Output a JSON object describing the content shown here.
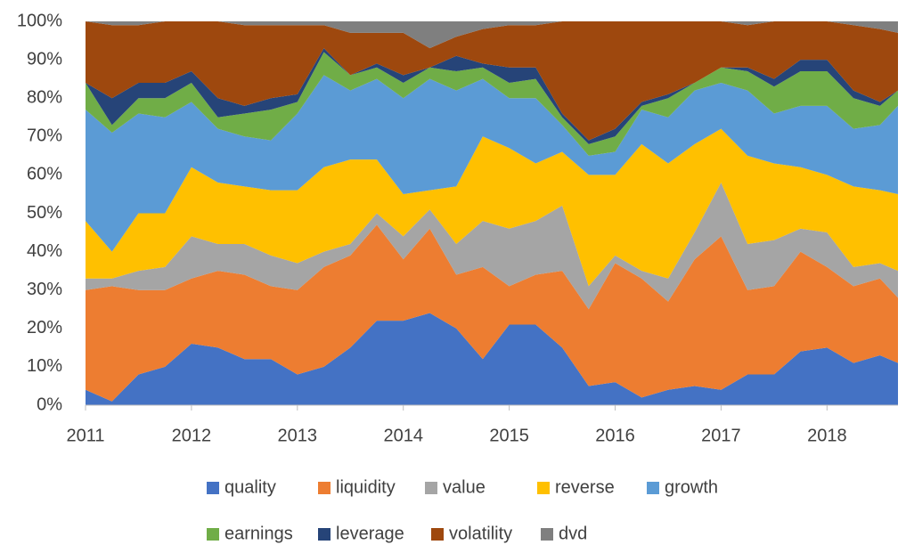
{
  "chart_data": {
    "type": "stacked_area",
    "x": [
      2011,
      2011.25,
      2011.5,
      2011.75,
      2012,
      2012.25,
      2012.5,
      2012.75,
      2013,
      2013.25,
      2013.5,
      2013.75,
      2014,
      2014.25,
      2014.5,
      2014.75,
      2015,
      2015.25,
      2015.5,
      2015.75,
      2016,
      2016.25,
      2016.5,
      2016.75,
      2017,
      2017.25,
      2017.5,
      2017.75,
      2018,
      2018.25,
      2018.5,
      2018.67
    ],
    "xlim": [
      2011,
      2018.67
    ],
    "xticks": [
      2011,
      2012,
      2013,
      2014,
      2015,
      2016,
      2017,
      2018
    ],
    "ylim": [
      0,
      100
    ],
    "yticks": [
      {
        "value": 0,
        "label": "0%"
      },
      {
        "value": 10,
        "label": "10%"
      },
      {
        "value": 20,
        "label": "20%"
      },
      {
        "value": 30,
        "label": "30%"
      },
      {
        "value": 40,
        "label": "40%"
      },
      {
        "value": 50,
        "label": "50%"
      },
      {
        "value": 60,
        "label": "60%"
      },
      {
        "value": 70,
        "label": "70%"
      },
      {
        "value": 80,
        "label": "80%"
      },
      {
        "value": 90,
        "label": "90%"
      },
      {
        "value": 100,
        "label": "100%"
      }
    ],
    "series": [
      {
        "name": "quality",
        "color": "#4472c4",
        "values": [
          4,
          1,
          8,
          10,
          16,
          15,
          12,
          12,
          8,
          10,
          15,
          22,
          22,
          24,
          20,
          12,
          21,
          21,
          15,
          5,
          6,
          2,
          4,
          5,
          4,
          8,
          8,
          14,
          15,
          11,
          13,
          11
        ]
      },
      {
        "name": "liquidity",
        "color": "#ed7d31",
        "values": [
          26,
          30,
          22,
          20,
          17,
          20,
          22,
          19,
          22,
          26,
          24,
          25,
          16,
          22,
          14,
          24,
          10,
          13,
          20,
          20,
          31,
          31,
          23,
          33,
          40,
          22,
          23,
          26,
          21,
          20,
          20,
          17
        ]
      },
      {
        "name": "value",
        "color": "#a5a5a5",
        "values": [
          3,
          2,
          5,
          6,
          11,
          7,
          8,
          8,
          7,
          4,
          3,
          3,
          6,
          5,
          8,
          12,
          15,
          14,
          17,
          6,
          2,
          2,
          6,
          7,
          14,
          12,
          12,
          6,
          9,
          5,
          4,
          7
        ]
      },
      {
        "name": "reverse",
        "color": "#ffc000",
        "values": [
          15,
          7,
          15,
          14,
          18,
          16,
          15,
          17,
          19,
          22,
          22,
          14,
          11,
          5,
          15,
          22,
          21,
          15,
          14,
          29,
          21,
          33,
          30,
          23,
          14,
          23,
          20,
          16,
          15,
          21,
          19,
          20
        ]
      },
      {
        "name": "growth",
        "color": "#5b9bd5",
        "values": [
          29,
          31,
          26,
          25,
          17,
          14,
          13,
          13,
          20,
          24,
          18,
          21,
          25,
          29,
          25,
          15,
          13,
          17,
          7,
          5,
          6,
          9,
          12,
          14,
          12,
          17,
          13,
          16,
          18,
          15,
          17,
          23
        ]
      },
      {
        "name": "earnings",
        "color": "#70ad47",
        "values": [
          7,
          2,
          4,
          5,
          5,
          3,
          6,
          8,
          3,
          6,
          4,
          3,
          4,
          3,
          5,
          3,
          4,
          5,
          2,
          3,
          4,
          1,
          5,
          2,
          4,
          5,
          7,
          9,
          9,
          8,
          5,
          4
        ]
      },
      {
        "name": "leverage",
        "color": "#264478",
        "values": [
          0,
          7,
          4,
          4,
          3,
          5,
          2,
          3,
          2,
          1,
          0,
          1,
          2,
          0,
          4,
          1,
          4,
          3,
          1,
          1,
          2,
          1,
          1,
          0,
          0,
          1,
          2,
          3,
          3,
          2,
          1,
          0
        ]
      },
      {
        "name": "volatility",
        "color": "#9e480e",
        "values": [
          16,
          19,
          15,
          16,
          13,
          20,
          21,
          19,
          18,
          6,
          11,
          8,
          11,
          5,
          5,
          9,
          11,
          11,
          24,
          31,
          28,
          21,
          19,
          16,
          12,
          11,
          15,
          10,
          10,
          17,
          19,
          15
        ]
      },
      {
        "name": "dvd",
        "color": "#7f7f7f",
        "values": [
          0,
          1,
          1,
          0,
          0,
          0,
          1,
          1,
          1,
          1,
          3,
          3,
          3,
          7,
          4,
          2,
          1,
          1,
          0,
          0,
          0,
          0,
          0,
          0,
          0,
          1,
          0,
          0,
          0,
          1,
          2,
          3
        ]
      }
    ]
  }
}
